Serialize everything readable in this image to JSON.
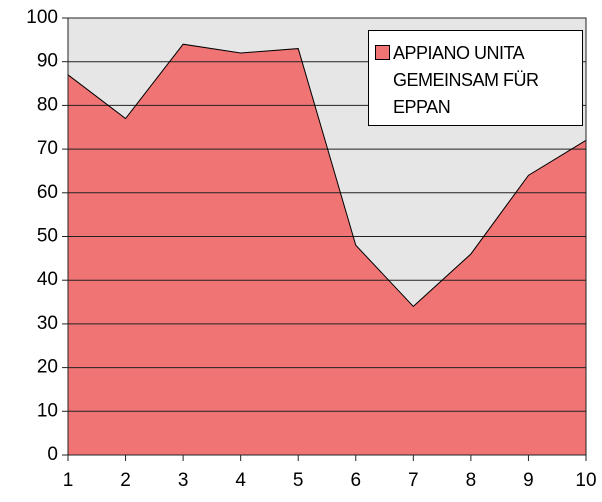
{
  "chart_data": {
    "type": "area",
    "x": [
      1,
      2,
      3,
      4,
      5,
      6,
      7,
      8,
      9,
      10
    ],
    "series": [
      {
        "name": "APPIANO UNITA GEMEINSAM FÜR EPPAN",
        "color": "#f07474",
        "values": [
          87,
          77,
          94,
          92,
          93,
          48,
          34,
          46,
          64,
          72
        ]
      }
    ],
    "xlim": [
      1,
      10
    ],
    "xticks": [
      1,
      2,
      3,
      4,
      5,
      6,
      7,
      8,
      9,
      10
    ],
    "ylim": [
      0,
      100
    ],
    "yticks": [
      0,
      10,
      20,
      30,
      40,
      50,
      60,
      70,
      80,
      90,
      100
    ],
    "grid": true,
    "legend": "upper right",
    "background": "#e6e6e6"
  }
}
